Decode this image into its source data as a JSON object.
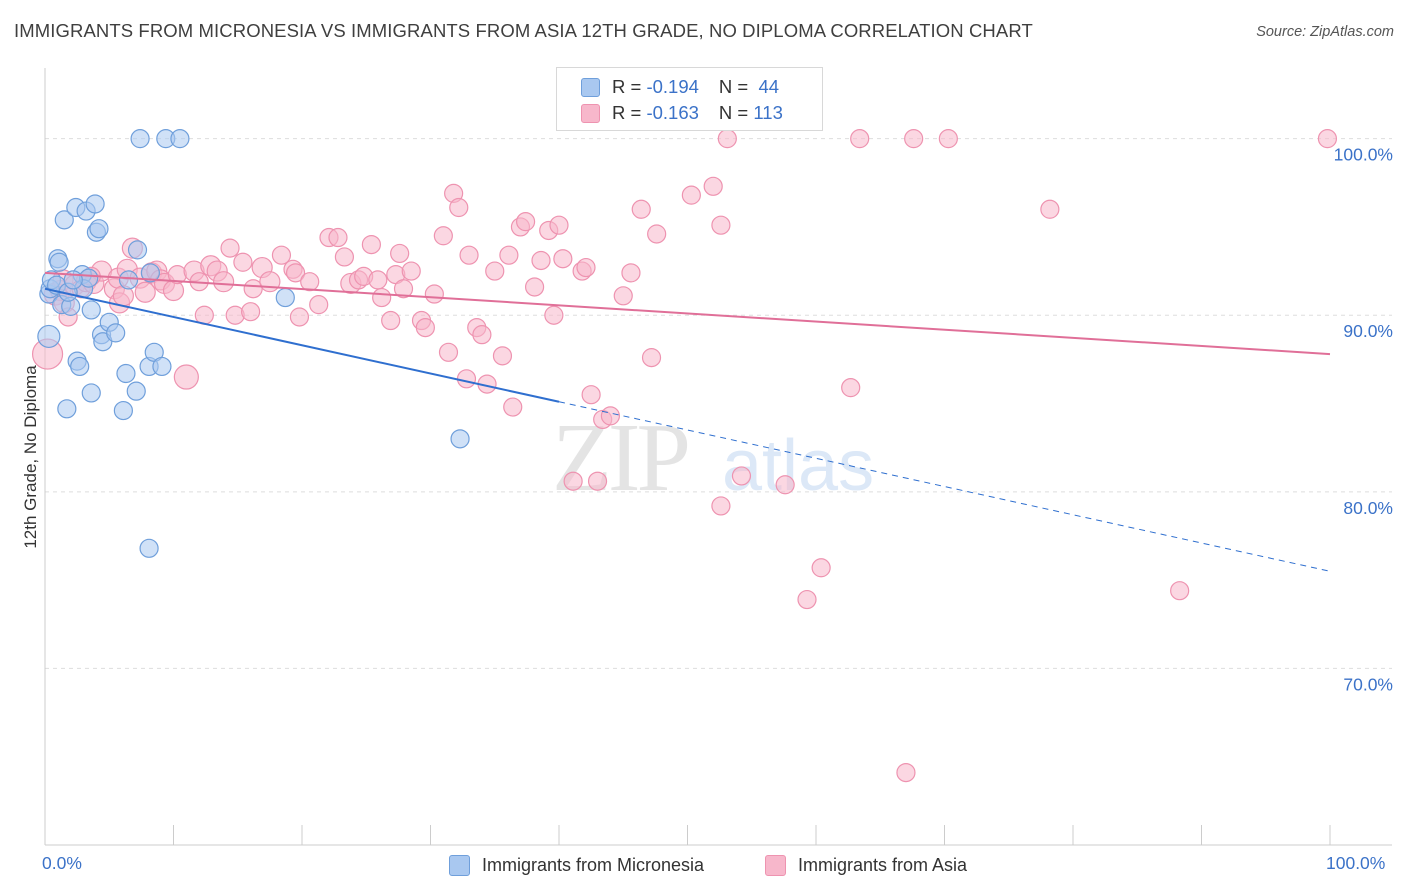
{
  "title": "IMMIGRANTS FROM MICRONESIA VS IMMIGRANTS FROM ASIA 12TH GRADE, NO DIPLOMA CORRELATION CHART",
  "source": "Source: ZipAtlas.com",
  "watermark": {
    "zip": "ZIP",
    "atlas": "atlas"
  },
  "legend": {
    "rows": [
      {
        "r_label": "R =",
        "r_value": "-0.194",
        "n_label": "N =",
        "n_value": "44"
      },
      {
        "r_label": "R =",
        "r_value": "-0.163",
        "n_label": "N =",
        "n_value": "113"
      }
    ]
  },
  "bottom_legend": [
    "Immigrants from Micronesia",
    "Immigrants from Asia"
  ],
  "colors": {
    "micronesia_fill": "#a9c8f0",
    "micronesia_stroke": "#6f9fdb",
    "micronesia_line": "#2f6fcf",
    "asia_fill": "#f7b7cb",
    "asia_stroke": "#ee93b0",
    "asia_line": "#e06f98",
    "tick_label": "#3b72c8",
    "grid": "#dddddd"
  },
  "chart_data": {
    "type": "scatter",
    "title": "IMMIGRANTS FROM MICRONESIA VS IMMIGRANTS FROM ASIA 12TH GRADE, NO DIPLOMA CORRELATION CHART",
    "xlabel": "",
    "ylabel": "12th Grade, No Diploma",
    "xlim": [
      0,
      100
    ],
    "ylim": [
      60,
      104
    ],
    "x_tick_labels": [
      "0.0%",
      "100.0%"
    ],
    "y_ticks": [
      70,
      80,
      90,
      100
    ],
    "y_tick_labels": [
      "70.0%",
      "80.0%",
      "90.0%",
      "100.0%"
    ],
    "grid": "horizontal dashed",
    "legend_position": "top-center",
    "series": [
      {
        "name": "Immigrants from Micronesia",
        "r": -0.194,
        "n": 44,
        "trend": {
          "x0": 0,
          "y0": 91.5,
          "x1": 40,
          "y1": 85.1,
          "dash_to_x": 100,
          "dash_to_y": 75.5
        },
        "points": [
          [
            0.3,
            88.8,
            11
          ],
          [
            0.3,
            91.2,
            9
          ],
          [
            0.4,
            91.5,
            9
          ],
          [
            0.5,
            92.0,
            9
          ],
          [
            0.9,
            91.7,
            9
          ],
          [
            1.0,
            93.2,
            9
          ],
          [
            1.1,
            93.0,
            9
          ],
          [
            1.3,
            90.6,
            9
          ],
          [
            1.5,
            95.4,
            9
          ],
          [
            1.7,
            84.7,
            9
          ],
          [
            2.0,
            90.5,
            9
          ],
          [
            2.4,
            96.1,
            9
          ],
          [
            2.5,
            87.4,
            9
          ],
          [
            2.7,
            87.1,
            9
          ],
          [
            2.9,
            92.3,
            9
          ],
          [
            3.0,
            91.5,
            9
          ],
          [
            3.2,
            95.9,
            9
          ],
          [
            3.6,
            85.6,
            9
          ],
          [
            3.6,
            90.3,
            9
          ],
          [
            3.9,
            96.3,
            9
          ],
          [
            4.0,
            94.7,
            9
          ],
          [
            4.2,
            94.9,
            9
          ],
          [
            4.4,
            88.9,
            9
          ],
          [
            4.5,
            88.5,
            9
          ],
          [
            5.0,
            89.6,
            9
          ],
          [
            5.5,
            89.0,
            9
          ],
          [
            6.1,
            84.6,
            9
          ],
          [
            6.3,
            86.7,
            9
          ],
          [
            6.5,
            92.0,
            9
          ],
          [
            7.1,
            85.7,
            9
          ],
          [
            7.2,
            93.7,
            9
          ],
          [
            7.4,
            100.0,
            9
          ],
          [
            8.1,
            87.1,
            9
          ],
          [
            8.1,
            76.8,
            9
          ],
          [
            8.2,
            92.4,
            9
          ],
          [
            8.5,
            87.9,
            9
          ],
          [
            9.1,
            87.1,
            9
          ],
          [
            9.4,
            100.0,
            9
          ],
          [
            10.5,
            100.0,
            9
          ],
          [
            18.7,
            91.0,
            9
          ],
          [
            32.3,
            83.0,
            9
          ],
          [
            1.8,
            91.3,
            9
          ],
          [
            3.4,
            92.1,
            9
          ],
          [
            2.2,
            92.0,
            9
          ]
        ]
      },
      {
        "name": "Immigrants from Asia",
        "r": -0.163,
        "n": 113,
        "trend": {
          "x0": 0,
          "y0": 92.4,
          "x1": 100,
          "y1": 87.8
        },
        "points": [
          [
            0.2,
            87.8,
            15
          ],
          [
            0.8,
            91.2,
            11
          ],
          [
            1.2,
            91.4,
            10
          ],
          [
            1.4,
            92.0,
            10
          ],
          [
            1.5,
            90.7,
            10
          ],
          [
            1.8,
            89.9,
            9
          ],
          [
            2.3,
            91.7,
            10
          ],
          [
            2.8,
            91.5,
            9
          ],
          [
            3.2,
            91.9,
            10
          ],
          [
            3.8,
            91.8,
            10
          ],
          [
            4.4,
            92.5,
            10
          ],
          [
            5.4,
            91.5,
            10
          ],
          [
            5.7,
            92.1,
            10
          ],
          [
            5.8,
            90.7,
            10
          ],
          [
            6.1,
            91.1,
            10
          ],
          [
            6.4,
            92.6,
            10
          ],
          [
            6.8,
            93.8,
            10
          ],
          [
            7.4,
            92.1,
            10
          ],
          [
            7.8,
            91.3,
            10
          ],
          [
            8.3,
            92.4,
            10
          ],
          [
            8.7,
            92.5,
            10
          ],
          [
            9.0,
            92.0,
            10
          ],
          [
            9.3,
            91.8,
            10
          ],
          [
            10.0,
            91.4,
            10
          ],
          [
            10.3,
            92.3,
            9
          ],
          [
            11.0,
            86.5,
            12
          ],
          [
            11.6,
            92.5,
            10
          ],
          [
            12.0,
            91.9,
            9
          ],
          [
            12.4,
            90.0,
            9
          ],
          [
            12.9,
            92.8,
            10
          ],
          [
            13.4,
            92.5,
            10
          ],
          [
            13.9,
            91.9,
            10
          ],
          [
            14.4,
            93.8,
            9
          ],
          [
            14.8,
            90.0,
            9
          ],
          [
            15.4,
            93.0,
            9
          ],
          [
            16.0,
            90.2,
            9
          ],
          [
            16.2,
            91.5,
            9
          ],
          [
            16.9,
            92.7,
            10
          ],
          [
            17.5,
            91.9,
            10
          ],
          [
            18.4,
            93.4,
            9
          ],
          [
            19.3,
            92.6,
            9
          ],
          [
            19.5,
            92.4,
            9
          ],
          [
            19.8,
            89.9,
            9
          ],
          [
            20.6,
            91.9,
            9
          ],
          [
            21.3,
            90.6,
            9
          ],
          [
            22.1,
            94.4,
            9
          ],
          [
            22.8,
            94.4,
            9
          ],
          [
            23.3,
            93.3,
            9
          ],
          [
            23.8,
            91.8,
            10
          ],
          [
            24.4,
            92.0,
            9
          ],
          [
            24.8,
            92.2,
            9
          ],
          [
            25.4,
            94.0,
            9
          ],
          [
            25.9,
            92.0,
            9
          ],
          [
            26.2,
            91.0,
            9
          ],
          [
            26.9,
            89.7,
            9
          ],
          [
            27.3,
            92.3,
            9
          ],
          [
            27.6,
            93.5,
            9
          ],
          [
            27.9,
            91.5,
            9
          ],
          [
            28.5,
            92.5,
            9
          ],
          [
            29.3,
            89.7,
            9
          ],
          [
            29.6,
            89.3,
            9
          ],
          [
            30.3,
            91.2,
            9
          ],
          [
            31.0,
            94.5,
            9
          ],
          [
            31.4,
            87.9,
            9
          ],
          [
            31.8,
            96.9,
            9
          ],
          [
            32.2,
            96.1,
            9
          ],
          [
            32.8,
            86.4,
            9
          ],
          [
            33.0,
            93.4,
            9
          ],
          [
            33.6,
            89.3,
            9
          ],
          [
            34.0,
            88.9,
            9
          ],
          [
            34.4,
            86.1,
            9
          ],
          [
            35.0,
            92.5,
            9
          ],
          [
            35.6,
            87.7,
            9
          ],
          [
            36.1,
            93.4,
            9
          ],
          [
            36.4,
            84.8,
            9
          ],
          [
            37.0,
            95.0,
            9
          ],
          [
            37.4,
            95.3,
            9
          ],
          [
            38.1,
            91.6,
            9
          ],
          [
            38.6,
            93.1,
            9
          ],
          [
            39.2,
            94.8,
            9
          ],
          [
            39.6,
            90.0,
            9
          ],
          [
            40.0,
            95.1,
            9
          ],
          [
            40.3,
            93.2,
            9
          ],
          [
            41.1,
            80.6,
            9
          ],
          [
            41.8,
            92.5,
            9
          ],
          [
            42.1,
            92.7,
            9
          ],
          [
            42.5,
            85.5,
            9
          ],
          [
            43.0,
            80.6,
            9
          ],
          [
            43.4,
            84.1,
            9
          ],
          [
            44.0,
            84.3,
            9
          ],
          [
            45.0,
            91.1,
            9
          ],
          [
            45.6,
            92.4,
            9
          ],
          [
            46.4,
            96.0,
            9
          ],
          [
            47.2,
            87.6,
            9
          ],
          [
            47.6,
            94.6,
            9
          ],
          [
            50.3,
            96.8,
            9
          ],
          [
            52.0,
            97.3,
            9
          ],
          [
            52.6,
            95.1,
            9
          ],
          [
            52.6,
            79.2,
            9
          ],
          [
            53.1,
            100.0,
            9
          ],
          [
            54.2,
            80.9,
            9
          ],
          [
            57.6,
            80.4,
            9
          ],
          [
            59.3,
            73.9,
            9
          ],
          [
            60.4,
            75.7,
            9
          ],
          [
            62.7,
            85.9,
            9
          ],
          [
            63.4,
            100.0,
            9
          ],
          [
            67.0,
            64.1,
            9
          ],
          [
            67.6,
            100.0,
            9
          ],
          [
            70.3,
            100.0,
            9
          ],
          [
            78.2,
            96.0,
            9
          ],
          [
            88.3,
            74.4,
            9
          ],
          [
            99.8,
            100.0,
            9
          ],
          [
            3.6,
            92.2,
            9
          ]
        ]
      }
    ]
  }
}
